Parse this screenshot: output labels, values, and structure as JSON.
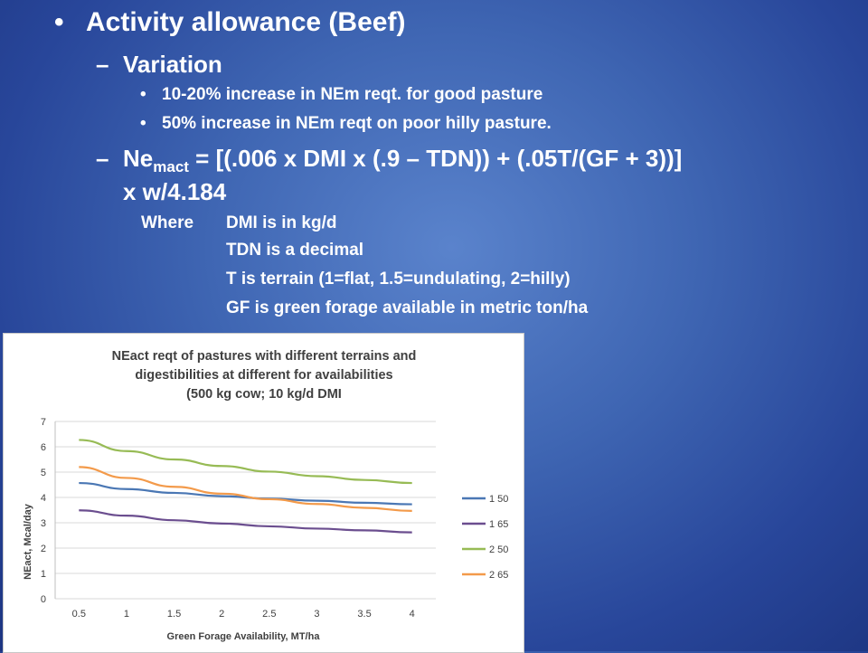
{
  "slide": {
    "title": "Activity allowance (Beef)",
    "variation_heading": "Variation",
    "variation_points": [
      "10-20% increase in NEm reqt. for good pasture",
      "50% increase in NEm reqt on poor hilly pasture."
    ],
    "formula_lhs_base": "Ne",
    "formula_lhs_sub": "mact",
    "formula_rhs_line1": " = [(.006 x DMI x (.9 – TDN)) + (.05T/(GF + 3))]",
    "formula_line2": "x w/4.184",
    "where_label": "Where",
    "where_defs": [
      "DMI is in kg/d",
      "TDN is a decimal",
      "T is terrain (1=flat, 1.5=undulating, 2=hilly)",
      "GF is green forage available in metric ton/ha"
    ]
  },
  "chart_data": {
    "type": "line",
    "title_lines": [
      "NEact reqt of pastures with different terrains and",
      "digestibilities at different for availabilities",
      "(500 kg cow; 10 kg/d DMI"
    ],
    "xlabel": "Green Forage Availability, MT/ha",
    "ylabel": "NEact, Mcal/day",
    "x": [
      "0.5",
      "1",
      "1.5",
      "2",
      "2.5",
      "3",
      "3.5",
      "4"
    ],
    "ylim": [
      0,
      7
    ],
    "yticks": [
      "0",
      "1",
      "2",
      "3",
      "4",
      "5",
      "6",
      "7"
    ],
    "grid": true,
    "legend_position": "right",
    "series": [
      {
        "name": "1 50",
        "color": "#4a77b4",
        "values": [
          4.57,
          4.33,
          4.18,
          4.05,
          3.95,
          3.87,
          3.79,
          3.73
        ]
      },
      {
        "name": "1 65",
        "color": "#6b4e8f",
        "values": [
          3.49,
          3.28,
          3.1,
          2.97,
          2.86,
          2.77,
          2.7,
          2.62
        ]
      },
      {
        "name": "2 50",
        "color": "#97bb55",
        "values": [
          6.27,
          5.83,
          5.5,
          5.24,
          5.02,
          4.84,
          4.69,
          4.57
        ]
      },
      {
        "name": "2 65",
        "color": "#f39a4a",
        "values": [
          5.2,
          4.77,
          4.42,
          4.15,
          3.93,
          3.74,
          3.59,
          3.47
        ]
      }
    ]
  }
}
